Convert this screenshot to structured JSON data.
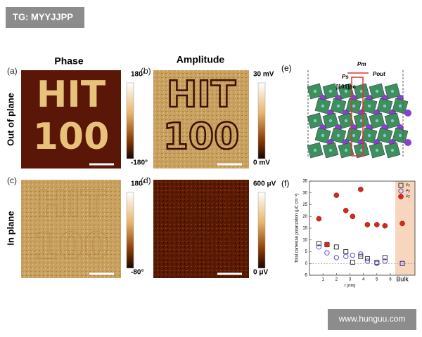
{
  "watermark": "TG: MYYJJPP",
  "footer": "www.hunguu.com",
  "columns": [
    "Phase",
    "Amplitude"
  ],
  "rows": [
    "Out of plane",
    "In plane"
  ],
  "pattern": [
    "HIT",
    "100"
  ],
  "panels": [
    {
      "label": "(a)",
      "scale_max": "180°",
      "scale_min": "-180°"
    },
    {
      "label": "(b)",
      "scale_max": "30 mV",
      "scale_min": "0 mV"
    },
    {
      "label": "(c)",
      "scale_max": "180°",
      "scale_min": "-80°"
    },
    {
      "label": "(d)",
      "scale_max": "600 μV",
      "scale_min": "0 μV"
    }
  ],
  "structure": {
    "label": "(e)",
    "texts": [
      "Pm",
      "Ps",
      "Pout",
      "[101̄]pc"
    ]
  },
  "chart_data": {
    "type": "scatter",
    "label": "(f)",
    "x_label": "r (nm)",
    "y_label": "Total cartesian polarization (μC cm⁻²)",
    "bulk_label": "Bulk",
    "x": [
      0.7,
      1.3,
      2,
      2.7,
      3.2,
      3.8,
      4.3,
      5,
      5.6
    ],
    "xlim": [
      0,
      6
    ],
    "xticks": [
      1,
      2,
      3,
      4,
      5,
      6
    ],
    "ylim": [
      -5,
      35
    ],
    "yticks": [
      -5,
      0,
      5,
      10,
      15,
      20,
      25,
      30,
      35
    ],
    "series": [
      {
        "name": "Px",
        "color": "#333333",
        "marker": "square",
        "values": [
          8.5,
          8,
          7,
          5,
          0.5,
          3,
          2,
          0.5,
          2.5
        ],
        "bulk_value": 0
      },
      {
        "name": "Py",
        "color": "#5b4fc9",
        "marker": "circle",
        "values": [
          7,
          4.5,
          2.5,
          3,
          3.5,
          4,
          1,
          0,
          1
        ],
        "bulk_value": 0
      },
      {
        "name": "Pz",
        "color": "#d42a1e",
        "marker": "filled",
        "values": [
          19,
          8,
          29,
          22.5,
          20,
          31.5,
          16.5,
          16.5,
          16
        ],
        "bulk_value": 17
      }
    ]
  }
}
